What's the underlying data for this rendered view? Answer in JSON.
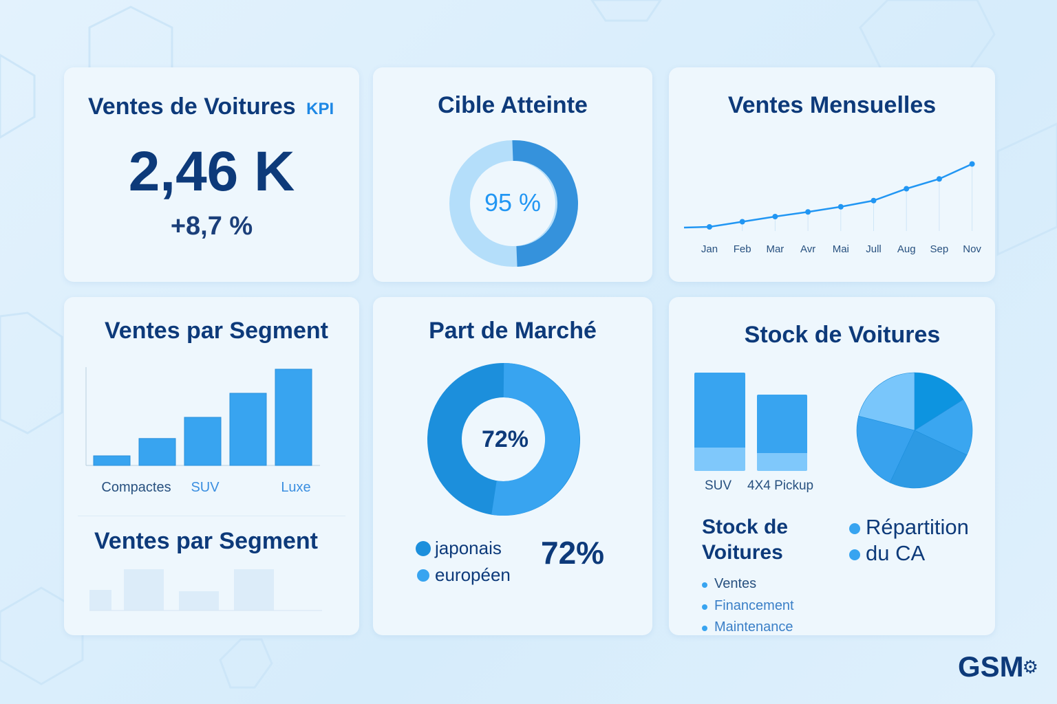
{
  "kpi": {
    "title": "Ventes de Voitures",
    "badge": "KPI",
    "value": "2,46 K",
    "change": "+8,7 %"
  },
  "target": {
    "title": "Cible Atteinte",
    "value_label": "95 %",
    "percent": 95,
    "colors": {
      "filled": "#3592dc",
      "rest": "#b4defa"
    }
  },
  "monthly": {
    "title": "Ventes Mensuelles",
    "chart_data": {
      "type": "line",
      "categories": [
        "Jan",
        "Feb",
        "Mar",
        "Avr",
        "Mai",
        "Jull",
        "Aug",
        "Sep",
        "Nov"
      ],
      "values": [
        40,
        50,
        60,
        69,
        79,
        91,
        114,
        133,
        162
      ],
      "color": "#2196f3",
      "grid": false
    }
  },
  "segment": {
    "title": "Ventes par Segment",
    "chart_data": {
      "type": "bar",
      "categories": [
        "Compactes",
        "SUV",
        "",
        "",
        "Luxe"
      ],
      "values": [
        10,
        28,
        50,
        75,
        100
      ],
      "color": "#38a4f0"
    },
    "faded_title": "Ventes par Segment",
    "faded_values": [
      30,
      60,
      28,
      60
    ]
  },
  "market": {
    "title": "Part de Marché",
    "center_label": "72%",
    "legend": [
      {
        "label": "japonais",
        "color": "#1c8fdc"
      },
      {
        "label": "européen",
        "color": "#38a4f0"
      }
    ],
    "big_value": "72%"
  },
  "stock": {
    "title": "Stock de Voitures",
    "bars": {
      "categories": [
        "SUV",
        "4X4 Pickup"
      ],
      "top": [
        108,
        84
      ],
      "bottom": [
        34,
        26
      ]
    },
    "pie": {
      "type": "pie",
      "values": [
        16,
        16,
        25,
        22,
        21
      ],
      "colors": [
        "#0d94e0",
        "#3aa6f0",
        "#2d9ae4",
        "#38a2ee",
        "#79c6fb"
      ]
    },
    "subtitle": "Stock de Voitures",
    "items": [
      "Ventes",
      "Financement",
      "Maintenance"
    ],
    "legend": [
      "Répartition",
      "du CA"
    ]
  },
  "logo": "GSM"
}
